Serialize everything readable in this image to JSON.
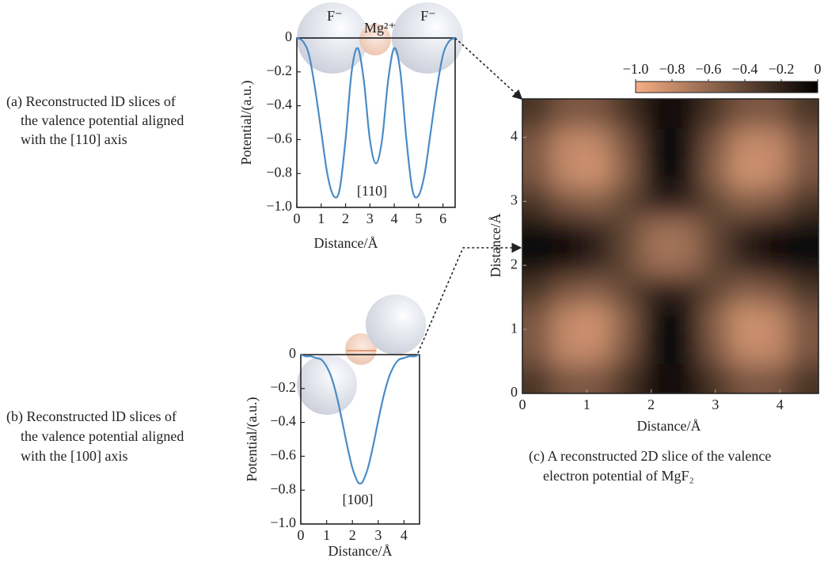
{
  "chart_data": [
    {
      "type": "line",
      "caption": [
        "(a) Reconstructed lD slices of",
        "the valence potential aligned",
        "with the [110] axis"
      ],
      "xlabel": "Distance/Å",
      "ylabel": "Potential/(a.u.)",
      "annotations": [
        "F⁻",
        "Mg²⁺",
        "F⁻",
        "[110]"
      ],
      "color": "#4a8cc6",
      "x": [
        0,
        0.25,
        0.5,
        0.75,
        1.0,
        1.25,
        1.5,
        1.75,
        2.0,
        2.25,
        2.5,
        2.75,
        3.0,
        3.25,
        3.5,
        3.75,
        4.0,
        4.25,
        4.5,
        4.75,
        5.0,
        5.25,
        5.5,
        5.75,
        6.0,
        6.25,
        6.5
      ],
      "values": [
        0,
        -0.02,
        -0.1,
        -0.3,
        -0.55,
        -0.8,
        -0.93,
        -0.9,
        -0.6,
        -0.2,
        -0.06,
        -0.25,
        -0.6,
        -0.74,
        -0.6,
        -0.25,
        -0.06,
        -0.2,
        -0.6,
        -0.9,
        -0.93,
        -0.8,
        -0.55,
        -0.3,
        -0.1,
        -0.02,
        0
      ],
      "xlim": [
        0,
        6.5
      ],
      "xticks": [
        0,
        1,
        2,
        3,
        4,
        5,
        6
      ],
      "ylim": [
        -1.0,
        0
      ],
      "yticks": [
        {
          "value": -1.0,
          "label": "−1.0"
        },
        {
          "value": -0.8,
          "label": "−0.8"
        },
        {
          "value": -0.6,
          "label": "−0.6"
        },
        {
          "value": -0.4,
          "label": "−0.4"
        },
        {
          "value": -0.2,
          "label": "−0.2"
        },
        0
      ]
    },
    {
      "type": "line",
      "caption": [
        "(b) Reconstructed lD slices of",
        "the valence potential aligned",
        "with the [100] axis"
      ],
      "xlabel": "Distance/Å",
      "ylabel": "Potential/(a.u.)",
      "annotations": [
        "[100]"
      ],
      "color": "#4a8cc6",
      "x": [
        0,
        0.2,
        0.4,
        0.6,
        0.8,
        1.0,
        1.2,
        1.4,
        1.6,
        1.8,
        2.0,
        2.2,
        2.3,
        2.4,
        2.6,
        2.8,
        3.0,
        3.2,
        3.4,
        3.6,
        3.8,
        4.0,
        4.2,
        4.4,
        4.6
      ],
      "values": [
        0,
        -0.01,
        -0.01,
        -0.02,
        -0.03,
        -0.07,
        -0.14,
        -0.25,
        -0.39,
        -0.54,
        -0.67,
        -0.75,
        -0.76,
        -0.75,
        -0.67,
        -0.54,
        -0.39,
        -0.25,
        -0.14,
        -0.07,
        -0.03,
        -0.02,
        -0.01,
        -0.01,
        0
      ],
      "xlim": [
        0,
        4.6
      ],
      "xticks": [
        0,
        1,
        2,
        3,
        4
      ],
      "ylim": [
        -1.0,
        0
      ],
      "yticks": [
        {
          "value": -1.0,
          "label": "−1.0"
        },
        {
          "value": -0.8,
          "label": "−0.8"
        },
        {
          "value": -0.6,
          "label": "−0.6"
        },
        {
          "value": -0.4,
          "label": "−0.4"
        },
        {
          "value": -0.2,
          "label": "−0.2"
        },
        0
      ]
    },
    {
      "type": "heatmap",
      "caption": [
        "(c) A reconstructed 2D slice of the valence",
        "electron potential of MgF₂"
      ],
      "xlabel": "Distance/Å",
      "ylabel": "Distance/Å",
      "x": [
        0.23,
        0.69,
        1.15,
        1.61,
        2.07,
        2.53,
        2.99,
        3.45,
        3.91,
        4.37
      ],
      "y": [
        0.23,
        0.69,
        1.15,
        1.61,
        2.07,
        2.53,
        2.99,
        3.45,
        3.91,
        4.37
      ],
      "z": [
        [
          -0.3,
          -0.5,
          -0.5,
          -0.3,
          -0.1,
          -0.1,
          -0.3,
          -0.5,
          -0.5,
          -0.3
        ],
        [
          -0.5,
          -0.8,
          -0.8,
          -0.5,
          -0.05,
          -0.05,
          -0.5,
          -0.8,
          -0.8,
          -0.5
        ],
        [
          -0.5,
          -0.8,
          -0.85,
          -0.55,
          -0.05,
          -0.05,
          -0.55,
          -0.85,
          -0.8,
          -0.5
        ],
        [
          -0.3,
          -0.5,
          -0.55,
          -0.4,
          -0.2,
          -0.2,
          -0.4,
          -0.55,
          -0.5,
          -0.3
        ],
        [
          -0.05,
          -0.1,
          -0.2,
          -0.4,
          -0.65,
          -0.65,
          -0.4,
          -0.2,
          -0.1,
          -0.05
        ],
        [
          -0.05,
          -0.1,
          -0.2,
          -0.4,
          -0.65,
          -0.65,
          -0.4,
          -0.2,
          -0.1,
          -0.05
        ],
        [
          -0.3,
          -0.5,
          -0.55,
          -0.4,
          -0.2,
          -0.2,
          -0.4,
          -0.55,
          -0.5,
          -0.3
        ],
        [
          -0.5,
          -0.8,
          -0.85,
          -0.55,
          -0.05,
          -0.05,
          -0.55,
          -0.85,
          -0.8,
          -0.5
        ],
        [
          -0.5,
          -0.8,
          -0.8,
          -0.5,
          -0.05,
          -0.05,
          -0.5,
          -0.8,
          -0.8,
          -0.5
        ],
        [
          -0.3,
          -0.5,
          -0.5,
          -0.3,
          -0.1,
          -0.1,
          -0.3,
          -0.5,
          -0.5,
          -0.3
        ]
      ],
      "cmap": [
        "#f6ae84",
        "#000000"
      ],
      "clim": [
        -1.0,
        0
      ],
      "cticks": [
        {
          "value": -1.0,
          "label": "−1.0"
        },
        {
          "value": -0.8,
          "label": "−0.8"
        },
        {
          "value": -0.6,
          "label": "−0.6"
        },
        {
          "value": -0.4,
          "label": "−0.4"
        },
        {
          "value": -0.2,
          "label": "−0.2"
        },
        0
      ],
      "xlim": [
        0,
        4.6
      ],
      "xticks": [
        0,
        1,
        2,
        3,
        4
      ],
      "ylim": [
        0,
        4.6
      ],
      "yticks": [
        0,
        1,
        2,
        3,
        4
      ]
    }
  ]
}
